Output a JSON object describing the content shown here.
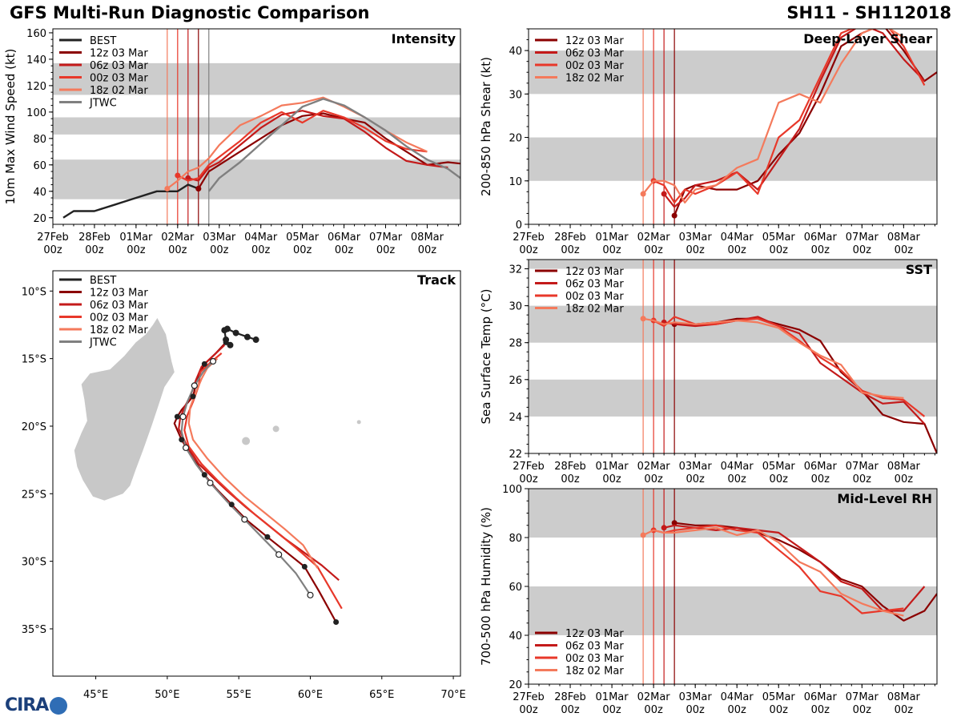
{
  "header": {
    "title_left": "GFS Multi-Run Diagnostic Comparison",
    "title_right": "SH11 - SH112018"
  },
  "logo": {
    "text": "CIRA"
  },
  "colors": {
    "best": "#222222",
    "jtwc": "#808080",
    "run12z": "#8b0000",
    "run06z": "#c41a1a",
    "run00z": "#e8382a",
    "run18z": "#f47a5c",
    "band": "#cccccc",
    "land": "#c8c8c8"
  },
  "time_axis": {
    "labels": [
      [
        "27Feb",
        "00z"
      ],
      [
        "28Feb",
        "00z"
      ],
      [
        "01Mar",
        "00z"
      ],
      [
        "02Mar",
        "00z"
      ],
      [
        "03Mar",
        "00z"
      ],
      [
        "04Mar",
        "00z"
      ],
      [
        "05Mar",
        "00z"
      ],
      [
        "06Mar",
        "00z"
      ],
      [
        "07Mar",
        "00z"
      ],
      [
        "08Mar",
        "00z"
      ]
    ],
    "range": [
      0,
      9.8
    ],
    "init_times": [
      3.5,
      3.25,
      3.0,
      2.75
    ],
    "jtwc_time": 3.75
  },
  "chart_data": [
    {
      "id": "intensity",
      "type": "line",
      "title": "Intensity",
      "ylabel": "10m Max Wind Speed (kt)",
      "ylim": [
        15,
        163
      ],
      "yticks": [
        20,
        40,
        60,
        80,
        100,
        120,
        140,
        160
      ],
      "bands": [
        [
          34,
          64
        ],
        [
          83,
          96
        ],
        [
          113,
          137
        ]
      ],
      "legend": [
        "BEST",
        "12z 03 Mar",
        "06z 03 Mar",
        "00z 03 Mar",
        "18z 02 Mar",
        "JTWC"
      ],
      "series": [
        {
          "name": "BEST",
          "x": [
            0.25,
            0.5,
            1.0,
            1.5,
            2.0,
            2.5,
            3.0,
            3.25,
            3.5
          ],
          "y": [
            20,
            25,
            25,
            30,
            35,
            40,
            40,
            45,
            42
          ]
        },
        {
          "name": "12z 03 Mar",
          "x": [
            3.5,
            3.75,
            4.0,
            4.5,
            5.0,
            5.5,
            6.0,
            6.5,
            7.0,
            7.5,
            8.0,
            8.5,
            9.0,
            9.5,
            9.8
          ],
          "y": [
            42,
            55,
            60,
            70,
            80,
            90,
            97,
            99,
            95,
            92,
            80,
            70,
            60,
            62,
            61
          ]
        },
        {
          "name": "06z 03 Mar",
          "x": [
            3.25,
            3.5,
            3.75,
            4.0,
            4.5,
            5.0,
            5.5,
            6.0,
            6.5,
            7.0,
            7.5,
            8.0,
            8.5,
            9.0,
            9.5
          ],
          "y": [
            50,
            48,
            58,
            62,
            75,
            88,
            98,
            101,
            97,
            95,
            85,
            73,
            63,
            60,
            58
          ]
        },
        {
          "name": "00z 03 Mar",
          "x": [
            3.0,
            3.25,
            3.5,
            3.75,
            4.0,
            4.5,
            5.0,
            5.5,
            6.0,
            6.5,
            7.0,
            7.5,
            8.0,
            8.5,
            9.0
          ],
          "y": [
            52,
            48,
            50,
            60,
            66,
            78,
            92,
            100,
            92,
            101,
            96,
            88,
            78,
            72,
            70
          ]
        },
        {
          "name": "18z 02 Mar",
          "x": [
            2.75,
            3.0,
            3.25,
            3.5,
            3.75,
            4.0,
            4.5,
            5.0,
            5.5,
            6.0,
            6.5,
            7.0,
            7.5,
            8.0,
            8.5,
            9.0
          ],
          "y": [
            42,
            48,
            55,
            58,
            65,
            75,
            90,
            97,
            105,
            107,
            111,
            104,
            96,
            86,
            77,
            70
          ]
        },
        {
          "name": "JTWC",
          "x": [
            3.75,
            4.0,
            4.5,
            5.0,
            5.5,
            6.0,
            6.5,
            7.0,
            7.5,
            8.0,
            8.5,
            9.0,
            9.5,
            9.8
          ],
          "y": [
            40,
            50,
            62,
            76,
            90,
            104,
            110,
            105,
            96,
            86,
            74,
            64,
            57,
            50
          ]
        }
      ]
    },
    {
      "id": "shear",
      "type": "line",
      "title": "Deep-Layer Shear",
      "ylabel": "200-850 hPa Shear (kt)",
      "ylim": [
        0,
        45
      ],
      "yticks": [
        0,
        10,
        20,
        30,
        40
      ],
      "bands": [
        [
          10,
          20
        ],
        [
          30,
          40
        ]
      ],
      "legend": [
        "12z 03 Mar",
        "06z 03 Mar",
        "00z 03 Mar",
        "18z 02 Mar"
      ],
      "series": [
        {
          "name": "12z 03 Mar",
          "x": [
            3.5,
            3.75,
            4.0,
            4.5,
            5.0,
            5.5,
            6.0,
            6.5,
            7.0,
            7.5,
            8.0,
            8.5,
            9.0,
            9.5,
            9.8
          ],
          "y": [
            2,
            8,
            9,
            8,
            8,
            10,
            16,
            21,
            30,
            41,
            44,
            46,
            40,
            33,
            35
          ]
        },
        {
          "name": "06z 03 Mar",
          "x": [
            3.25,
            3.5,
            3.75,
            4.0,
            4.5,
            5.0,
            5.5,
            6.0,
            6.5,
            7.0,
            7.5,
            8.0,
            8.5,
            9.0,
            9.5
          ],
          "y": [
            7,
            4,
            6,
            9,
            10,
            12,
            8,
            15,
            22,
            33,
            43,
            46,
            44,
            38,
            33
          ]
        },
        {
          "name": "00z 03 Mar",
          "x": [
            3.0,
            3.25,
            3.5,
            3.75,
            4.0,
            4.5,
            5.0,
            5.5,
            6.0,
            6.5,
            7.0,
            7.5,
            8.0,
            8.5,
            9.0,
            9.5
          ],
          "y": [
            10,
            9,
            5,
            8,
            7,
            9,
            12,
            7,
            20,
            24,
            34,
            44,
            46,
            47,
            41,
            32
          ]
        },
        {
          "name": "18z 02 Mar",
          "x": [
            2.75,
            3.0,
            3.25,
            3.5,
            3.75,
            4.0,
            4.5,
            5.0,
            5.5,
            6.0,
            6.5,
            7.0,
            7.5,
            8.0,
            8.5,
            9.0
          ],
          "y": [
            7,
            10,
            10,
            9,
            5,
            8,
            9,
            13,
            15,
            28,
            30,
            28,
            37,
            44,
            46,
            43
          ]
        }
      ]
    },
    {
      "id": "sst",
      "type": "line",
      "title": "SST",
      "ylabel": "Sea Surface Temp (°C)",
      "ylim": [
        22,
        32.5
      ],
      "yticks": [
        22,
        24,
        26,
        28,
        30,
        32
      ],
      "bands": [
        [
          24,
          26
        ],
        [
          28,
          30
        ],
        [
          32,
          32.5
        ]
      ],
      "legend": [
        "12z 03 Mar",
        "06z 03 Mar",
        "00z 03 Mar",
        "18z 02 Mar"
      ],
      "series": [
        {
          "name": "12z 03 Mar",
          "x": [
            3.5,
            4.0,
            4.5,
            5.0,
            5.5,
            6.0,
            6.5,
            7.0,
            7.5,
            8.0,
            8.5,
            9.0,
            9.5,
            9.8
          ],
          "y": [
            29.0,
            29.0,
            29.1,
            29.3,
            29.3,
            29.0,
            28.7,
            28.1,
            26.4,
            25.4,
            24.1,
            23.7,
            23.6,
            22.0
          ]
        },
        {
          "name": "06z 03 Mar",
          "x": [
            3.25,
            3.5,
            4.0,
            4.5,
            5.0,
            5.5,
            6.0,
            6.5,
            7.0,
            7.5,
            8.0,
            8.5,
            9.0,
            9.5
          ],
          "y": [
            29.1,
            29.0,
            28.9,
            29.0,
            29.2,
            29.4,
            28.9,
            28.5,
            26.9,
            26.1,
            25.3,
            24.7,
            24.8,
            23.6
          ]
        },
        {
          "name": "00z 03 Mar",
          "x": [
            3.0,
            3.25,
            3.5,
            4.0,
            4.5,
            5.0,
            5.5,
            6.0,
            6.5,
            7.0,
            7.5,
            8.0,
            8.5,
            9.0,
            9.5
          ],
          "y": [
            29.2,
            28.9,
            29.4,
            29.0,
            29.0,
            29.2,
            29.3,
            28.9,
            28.1,
            27.2,
            26.5,
            25.4,
            25.0,
            24.9,
            24.0
          ]
        },
        {
          "name": "18z 02 Mar",
          "x": [
            2.75,
            3.0,
            3.25,
            3.5,
            4.0,
            4.5,
            5.0,
            5.5,
            6.0,
            6.5,
            7.0,
            7.5,
            8.0,
            8.5,
            9.0
          ],
          "y": [
            29.3,
            29.2,
            29.0,
            29.1,
            29.0,
            29.1,
            29.2,
            29.1,
            28.8,
            28.0,
            27.3,
            26.8,
            25.3,
            25.1,
            25.0
          ]
        }
      ]
    },
    {
      "id": "rh",
      "type": "line",
      "title": "Mid-Level RH",
      "ylabel": "700-500 hPa Humidity (%)",
      "ylim": [
        20,
        100
      ],
      "yticks": [
        20,
        40,
        60,
        80,
        100
      ],
      "bands": [
        [
          40,
          60
        ],
        [
          80,
          100
        ]
      ],
      "legend": [
        "12z 03 Mar",
        "06z 03 Mar",
        "00z 03 Mar",
        "18z 02 Mar"
      ],
      "series": [
        {
          "name": "12z 03 Mar",
          "x": [
            3.5,
            4.0,
            4.5,
            5.0,
            5.5,
            6.0,
            6.5,
            7.0,
            7.5,
            8.0,
            8.5,
            9.0,
            9.5,
            9.8
          ],
          "y": [
            86,
            85,
            85,
            84,
            82,
            79,
            75,
            70,
            63,
            60,
            52,
            46,
            50,
            57
          ]
        },
        {
          "name": "06z 03 Mar",
          "x": [
            3.25,
            3.5,
            4.0,
            4.5,
            5.0,
            5.5,
            6.0,
            6.5,
            7.0,
            7.5,
            8.0,
            8.5,
            9.0,
            9.5
          ],
          "y": [
            84,
            85,
            84,
            83,
            84,
            83,
            82,
            76,
            70,
            62,
            59,
            50,
            50,
            60
          ]
        },
        {
          "name": "00z 03 Mar",
          "x": [
            3.0,
            3.25,
            3.5,
            4.0,
            4.5,
            5.0,
            5.5,
            6.0,
            6.5,
            7.0,
            7.5,
            8.0,
            8.5,
            9.0
          ],
          "y": [
            83,
            82,
            83,
            84,
            85,
            83,
            82,
            75,
            68,
            58,
            56,
            49,
            50,
            51
          ]
        },
        {
          "name": "18z 02 Mar",
          "x": [
            2.75,
            3.0,
            3.25,
            3.5,
            4.0,
            4.5,
            5.0,
            5.5,
            6.0,
            6.5,
            7.0,
            7.5,
            8.0,
            8.5,
            9.0
          ],
          "y": [
            81,
            83,
            82,
            82,
            83,
            84,
            81,
            83,
            78,
            70,
            66,
            57,
            53,
            50,
            48
          ]
        }
      ]
    },
    {
      "id": "track",
      "type": "line",
      "title": "Track",
      "subtype": "map",
      "xlim": [
        42,
        70.5
      ],
      "ylim": [
        -38.5,
        -8.5
      ],
      "xticks": [
        45,
        50,
        55,
        60,
        65,
        70
      ],
      "xticklabels": [
        "45°E",
        "50°E",
        "55°E",
        "60°E",
        "65°E",
        "70°E"
      ],
      "yticks": [
        -10,
        -15,
        -20,
        -25,
        -30,
        -35
      ],
      "yticklabels": [
        "10°S",
        "15°S",
        "20°S",
        "25°S",
        "30°S",
        "35°S"
      ],
      "legend": [
        "BEST",
        "12z 03 Mar",
        "06z 03 Mar",
        "00z 03 Mar",
        "18z 02 Mar",
        "JTWC"
      ],
      "series": [
        {
          "name": "BEST",
          "lon": [
            56.2,
            55.6,
            54.8,
            54.2,
            54.0,
            54.1,
            54.4
          ],
          "lat": [
            -13.6,
            -13.4,
            -13.1,
            -12.8,
            -12.9,
            -13.6,
            -14.0
          ]
        },
        {
          "name": "12z 03 Mar",
          "lon": [
            54.1,
            53.4,
            52.6,
            52.1,
            51.8,
            51.0,
            50.7,
            50.5,
            51.0,
            51.8,
            52.6,
            53.4,
            54.5,
            55.6,
            57.0,
            58.3,
            59.6,
            60.6,
            61.8
          ],
          "lat": [
            -13.8,
            -14.6,
            -15.4,
            -16.5,
            -17.8,
            -18.8,
            -19.3,
            -19.8,
            -21.0,
            -22.4,
            -23.6,
            -24.6,
            -25.8,
            -27.0,
            -28.2,
            -29.3,
            -30.4,
            -32.2,
            -34.5
          ]
        },
        {
          "name": "06z 03 Mar",
          "lon": [
            54.0,
            53.2,
            52.4,
            52.0,
            51.6,
            51.2,
            50.9,
            50.8,
            51.4,
            52.2,
            53.2,
            54.2,
            55.5,
            56.8,
            58.2,
            59.5,
            60.8,
            62.0
          ],
          "lat": [
            -14.0,
            -14.8,
            -15.6,
            -16.6,
            -17.8,
            -18.6,
            -19.4,
            -20.2,
            -21.5,
            -22.8,
            -23.8,
            -24.8,
            -26.0,
            -27.1,
            -28.3,
            -29.3,
            -30.3,
            -31.4
          ]
        },
        {
          "name": "00z 03 Mar",
          "lon": [
            53.8,
            53.0,
            52.3,
            52.2,
            51.8,
            51.4,
            51.2,
            51.5,
            52.4,
            53.5,
            54.8,
            56.2,
            57.6,
            59.0,
            60.5,
            62.2
          ],
          "lat": [
            -14.6,
            -15.3,
            -16.0,
            -17.0,
            -18.2,
            -19.2,
            -20.3,
            -21.5,
            -22.8,
            -24.0,
            -25.3,
            -26.6,
            -27.8,
            -29.0,
            -30.4,
            -33.5
          ]
        },
        {
          "name": "18z 02 Mar",
          "lon": [
            53.5,
            52.8,
            52.4,
            52.0,
            51.6,
            51.5,
            51.8,
            52.8,
            54.0,
            55.4,
            56.8,
            58.2,
            59.5,
            60.5
          ],
          "lat": [
            -15.0,
            -15.7,
            -16.5,
            -17.5,
            -18.6,
            -19.8,
            -21.0,
            -22.4,
            -23.8,
            -25.2,
            -26.4,
            -27.6,
            -28.8,
            -30.5
          ]
        },
        {
          "name": "JTWC",
          "lon": [
            53.2,
            52.5,
            51.9,
            51.4,
            51.1,
            51.0,
            51.3,
            52.0,
            53.0,
            54.2,
            55.4,
            56.6,
            57.8,
            59.0,
            60.0
          ],
          "lat": [
            -15.2,
            -16.0,
            -17.0,
            -18.2,
            -19.3,
            -20.4,
            -21.6,
            -22.8,
            -24.2,
            -25.6,
            -26.9,
            -28.2,
            -29.5,
            -30.9,
            -32.5
          ]
        }
      ]
    }
  ]
}
